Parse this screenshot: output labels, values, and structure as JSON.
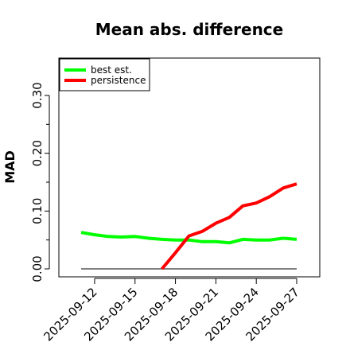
{
  "chart_data": {
    "type": "line",
    "title": "Mean abs. difference",
    "xlabel": "",
    "ylabel": "MAD",
    "x": [
      "2025-09-11",
      "2025-09-12",
      "2025-09-13",
      "2025-09-14",
      "2025-09-15",
      "2025-09-16",
      "2025-09-17",
      "2025-09-18",
      "2025-09-19",
      "2025-09-20",
      "2025-09-21",
      "2025-09-22",
      "2025-09-23",
      "2025-09-24",
      "2025-09-25",
      "2025-09-26",
      "2025-09-27"
    ],
    "x_tick_labels": [
      "2025-09-12",
      "2025-09-15",
      "2025-09-18",
      "2025-09-21",
      "2025-09-24",
      "2025-09-27"
    ],
    "y_ticks": [
      0.0,
      0.1,
      0.2,
      0.3
    ],
    "y_tick_labels": [
      "0.00",
      "0.10",
      "0.20",
      "0.30"
    ],
    "ylim": [
      -0.01,
      0.365
    ],
    "series": [
      {
        "name": "best est.",
        "color": "#00ff00",
        "values": [
          0.063,
          0.059,
          0.056,
          0.055,
          0.056,
          0.053,
          0.051,
          0.05,
          0.05,
          0.047,
          0.047,
          0.045,
          0.051,
          0.05,
          0.05,
          0.053,
          0.051
        ]
      },
      {
        "name": "persistence",
        "color": "#ff0000",
        "values": [
          null,
          null,
          null,
          null,
          null,
          null,
          0.0,
          0.028,
          0.057,
          0.065,
          0.079,
          0.089,
          0.109,
          0.114,
          0.125,
          0.14,
          0.147
        ]
      }
    ],
    "reference_line": {
      "y": 0.0,
      "color": "#555555"
    },
    "grid": false,
    "legend_position": "top-left"
  }
}
